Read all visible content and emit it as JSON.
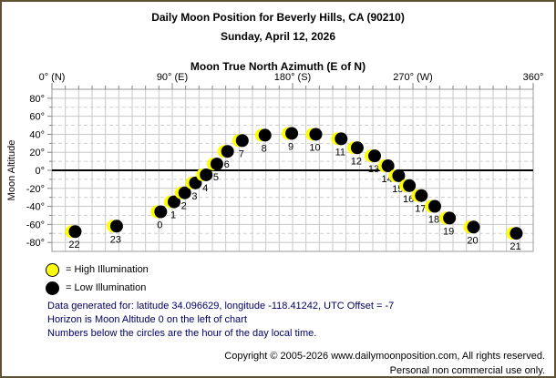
{
  "header": {
    "title": "Daily Moon Position for Beverly Hills, CA (90210)",
    "subtitle": "Sunday, April 12, 2026"
  },
  "chart_data": {
    "type": "scatter",
    "title": "Moon True North Azimuth (E of N)",
    "xlabel": "Moon True North Azimuth (E of N)",
    "ylabel": "Moon Altitude",
    "xlim": [
      0,
      360
    ],
    "ylim": [
      -90,
      90
    ],
    "grid": "on",
    "minor_grid_step_deg": 10,
    "x_ticks": [
      {
        "value": 0,
        "label": "0° (N)"
      },
      {
        "value": 90,
        "label": "90° (E)"
      },
      {
        "value": 180,
        "label": "180° (S)"
      },
      {
        "value": 270,
        "label": "270° (W)"
      },
      {
        "value": 360,
        "label": "360°"
      }
    ],
    "y_ticks": [
      {
        "value": 80,
        "label": "80°"
      },
      {
        "value": 60,
        "label": "60°"
      },
      {
        "value": 40,
        "label": "40°"
      },
      {
        "value": 20,
        "label": "20°"
      },
      {
        "value": 0,
        "label": "0°"
      },
      {
        "value": -20,
        "label": "-20°"
      },
      {
        "value": -40,
        "label": "-40°"
      },
      {
        "value": -60,
        "label": "-60°"
      },
      {
        "value": -80,
        "label": "-80°"
      }
    ],
    "points": [
      {
        "hour": 0,
        "azimuth": 80,
        "altitude": -46,
        "illumination": "low"
      },
      {
        "hour": 1,
        "azimuth": 90,
        "altitude": -35,
        "illumination": "low"
      },
      {
        "hour": 2,
        "azimuth": 98,
        "altitude": -25,
        "illumination": "low"
      },
      {
        "hour": 3,
        "azimuth": 106,
        "altitude": -14,
        "illumination": "low"
      },
      {
        "hour": 4,
        "azimuth": 114,
        "altitude": -5,
        "illumination": "low"
      },
      {
        "hour": 5,
        "azimuth": 122,
        "altitude": 7,
        "illumination": "low"
      },
      {
        "hour": 6,
        "azimuth": 130,
        "altitude": 21,
        "illumination": "low"
      },
      {
        "hour": 7,
        "azimuth": 141,
        "altitude": 33,
        "illumination": "low"
      },
      {
        "hour": 8,
        "azimuth": 158,
        "altitude": 39,
        "illumination": "low"
      },
      {
        "hour": 9,
        "azimuth": 178,
        "altitude": 41,
        "illumination": "low"
      },
      {
        "hour": 10,
        "azimuth": 196,
        "altitude": 40,
        "illumination": "low"
      },
      {
        "hour": 11,
        "azimuth": 215,
        "altitude": 35,
        "illumination": "low"
      },
      {
        "hour": 12,
        "azimuth": 227,
        "altitude": 25,
        "illumination": "low"
      },
      {
        "hour": 13,
        "azimuth": 240,
        "altitude": 16,
        "illumination": "low"
      },
      {
        "hour": 14,
        "azimuth": 250,
        "altitude": 5,
        "illumination": "low"
      },
      {
        "hour": 15,
        "azimuth": 258,
        "altitude": -6,
        "illumination": "low"
      },
      {
        "hour": 16,
        "azimuth": 266,
        "altitude": -17,
        "illumination": "low"
      },
      {
        "hour": 17,
        "azimuth": 275,
        "altitude": -28,
        "illumination": "low"
      },
      {
        "hour": 18,
        "azimuth": 285,
        "altitude": -40,
        "illumination": "low"
      },
      {
        "hour": 19,
        "azimuth": 296,
        "altitude": -53,
        "illumination": "low"
      },
      {
        "hour": 20,
        "azimuth": 314,
        "altitude": -63,
        "illumination": "low"
      },
      {
        "hour": 21,
        "azimuth": 346,
        "altitude": -70,
        "illumination": "low"
      },
      {
        "hour": 22,
        "azimuth": 16,
        "altitude": -68,
        "illumination": "low"
      },
      {
        "hour": 23,
        "azimuth": 47,
        "altitude": -62,
        "illumination": "low"
      }
    ]
  },
  "legend": {
    "high_label": "= High Illumination",
    "low_label": "= Low Illumination"
  },
  "notes": {
    "line1": "Data generated for: latitude 34.096629, longitude -118.41242, UTC Offset = -7",
    "line2": "Horizon is Moon Altitude 0 on the left of chart",
    "line3": "Numbers below the circles are the hour of the day local time."
  },
  "footer": {
    "line1": "Copyright © 2005-2026 www.dailymoonposition.com, All rights reserved.",
    "line2": "Personal non commercial use only."
  },
  "colors": {
    "high": "#ffff00",
    "low": "#000000",
    "grid": "#c8c8c8",
    "grid_dashed": "#cfcfcf",
    "frame": "#9a9a9a",
    "tick": "#808080",
    "horizon": "#000000",
    "note_text": "#000066",
    "border": "#5f5233"
  }
}
